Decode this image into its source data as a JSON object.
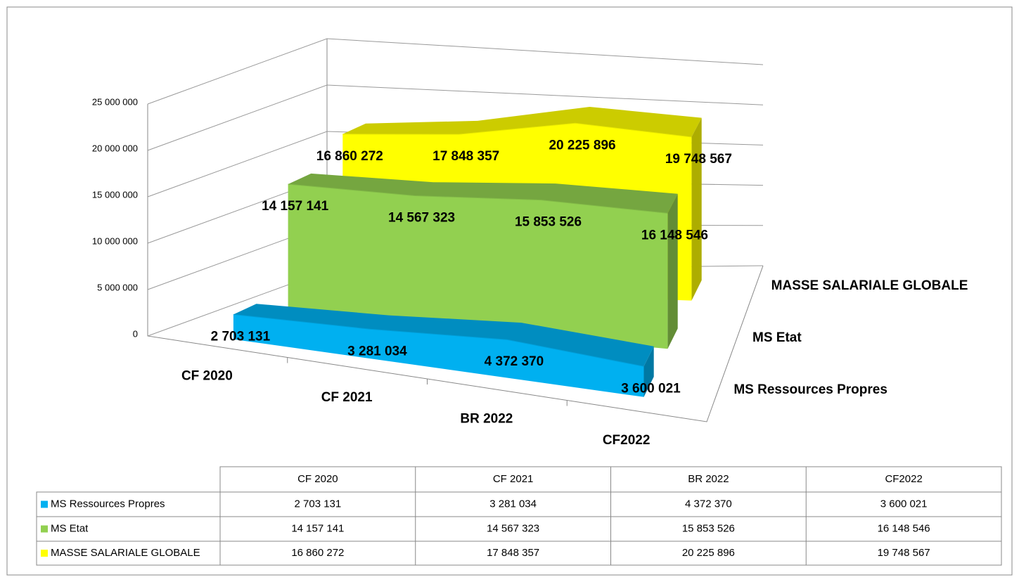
{
  "chart_data": {
    "type": "line3d",
    "categories": [
      "CF 2020",
      "CF 2021",
      "BR 2022",
      "CF2022"
    ],
    "series": [
      {
        "name": "MS Ressources Propres",
        "color": "#00b0f0",
        "values": [
          2703131,
          3281034,
          4372370,
          3600021
        ],
        "value_labels": [
          "2 703 131",
          "3 281 034",
          "4 372 370",
          "3 600 021"
        ]
      },
      {
        "name": "MS Etat",
        "color": "#92d050",
        "values": [
          14157141,
          14567323,
          15853526,
          16148546
        ],
        "value_labels": [
          "14 157 141",
          "14 567 323",
          "15 853 526",
          "16 148 546"
        ]
      },
      {
        "name": "MASSE SALARIALE GLOBALE",
        "color": "#ffff00",
        "values": [
          16860272,
          17848357,
          20225896,
          19748567
        ],
        "value_labels": [
          "16 860 272",
          "17 848 357",
          "20 225 896",
          "19 748 567"
        ]
      }
    ],
    "ylim": [
      0,
      25000000
    ],
    "yticks": [
      0,
      {
        "value": 5000000,
        "label": "5 000 000"
      },
      {
        "value": 10000000,
        "label": "10 000 000"
      },
      {
        "value": 15000000,
        "label": "15 000 000"
      },
      {
        "value": 20000000,
        "label": "20 000 000"
      },
      {
        "value": 25000000,
        "label": "25 000 000"
      }
    ],
    "grid": true,
    "data_table": true
  }
}
